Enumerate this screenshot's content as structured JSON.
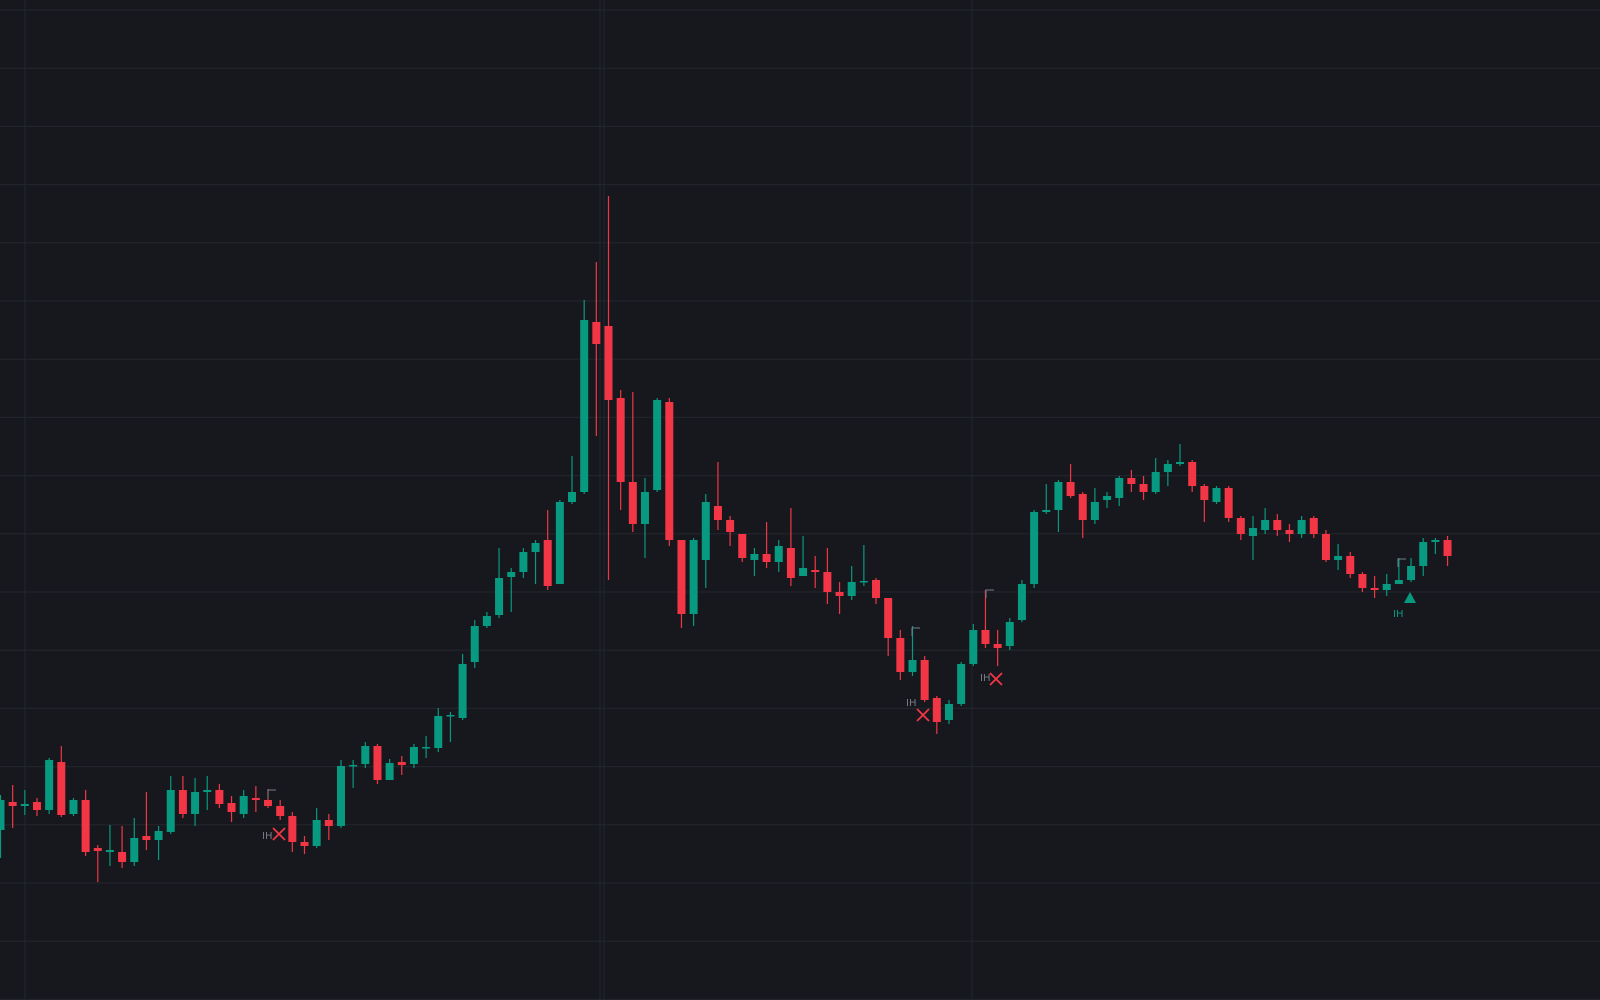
{
  "chart_data": {
    "type": "candlestick",
    "up_color": "#089981",
    "down_color": "#f23645",
    "ylim": [
      0,
      980
    ],
    "grid": true,
    "open": [
      150,
      178,
      174,
      178,
      170,
      218,
      166,
      180,
      132,
      128,
      128,
      118,
      144,
      140,
      148,
      190,
      166,
      188,
      190,
      177,
      166,
      182,
      180,
      174,
      164,
      138,
      134,
      160,
      154,
      214,
      216,
      234,
      200,
      218,
      216,
      232,
      232,
      264,
      262,
      318,
      354,
      365,
      403,
      408,
      428,
      440,
      396,
      478,
      488,
      658,
      654,
      582,
      498,
      456,
      490,
      578,
      440,
      366,
      420,
      474,
      460,
      446,
      420,
      426,
      418,
      432,
      404,
      410,
      408,
      388,
      384,
      398,
      400,
      382,
      342,
      308,
      320,
      282,
      260,
      276,
      316,
      350,
      336,
      334,
      360,
      396,
      468,
      470,
      498,
      486,
      460,
      480,
      482,
      502,
      496,
      488,
      508,
      516,
      518,
      494,
      478,
      492,
      462,
      444,
      450,
      460,
      450,
      446,
      462,
      446,
      420,
      424,
      406,
      392,
      390,
      396,
      400,
      414,
      438,
      440
    ],
    "high": [
      185,
      195,
      190,
      182,
      222,
      234,
      182,
      190,
      135,
      155,
      154,
      162,
      188,
      154,
      204,
      204,
      202,
      204,
      196,
      184,
      190,
      194,
      191,
      180,
      168,
      144,
      172,
      166,
      220,
      220,
      238,
      236,
      221,
      224,
      236,
      244,
      272,
      268,
      326,
      360,
      368,
      432,
      412,
      432,
      440,
      470,
      480,
      524,
      680,
      718,
      784,
      590,
      588,
      502,
      582,
      582,
      440,
      442,
      486,
      518,
      464,
      446,
      432,
      458,
      440,
      472,
      444,
      424,
      432,
      398,
      414,
      435,
      402,
      382,
      350,
      354,
      324,
      284,
      280,
      318,
      356,
      390,
      350,
      362,
      400,
      470,
      496,
      500,
      516,
      488,
      492,
      488,
      504,
      510,
      504,
      522,
      520,
      536,
      520,
      496,
      494,
      494,
      464,
      464,
      472,
      466,
      456,
      464,
      464,
      450,
      436,
      428,
      408,
      404,
      406,
      422,
      422,
      442,
      442,
      444
    ],
    "low": [
      122,
      152,
      165,
      164,
      166,
      163,
      164,
      124,
      98,
      114,
      112,
      114,
      130,
      120,
      146,
      162,
      154,
      170,
      172,
      158,
      162,
      168,
      172,
      160,
      128,
      126,
      132,
      140,
      152,
      192,
      212,
      196,
      200,
      205,
      212,
      222,
      228,
      238,
      260,
      312,
      352,
      362,
      368,
      402,
      396,
      390,
      396,
      476,
      486,
      544,
      400,
      470,
      448,
      422,
      488,
      434,
      352,
      354,
      392,
      450,
      434,
      418,
      404,
      412,
      408,
      394,
      404,
      392,
      376,
      366,
      380,
      394,
      376,
      324,
      300,
      304,
      278,
      246,
      256,
      274,
      314,
      332,
      314,
      330,
      358,
      392,
      466,
      448,
      482,
      442,
      456,
      472,
      474,
      488,
      480,
      486,
      494,
      514,
      488,
      458,
      476,
      458,
      440,
      420,
      446,
      444,
      438,
      442,
      442,
      418,
      410,
      402,
      388,
      382,
      384,
      396,
      398,
      404,
      426,
      414
    ],
    "close": [
      180,
      174,
      176,
      170,
      220,
      165,
      180,
      128,
      129,
      130,
      118,
      142,
      140,
      149,
      190,
      166,
      188,
      190,
      176,
      168,
      184,
      180,
      174,
      164,
      138,
      134,
      160,
      154,
      214,
      215,
      234,
      200,
      217,
      215,
      233,
      233,
      264,
      265,
      316,
      354,
      364,
      402,
      408,
      428,
      437,
      394,
      478,
      488,
      660,
      636,
      580,
      498,
      456,
      488,
      580,
      440,
      366,
      440,
      478,
      460,
      448,
      422,
      426,
      418,
      434,
      402,
      412,
      408,
      388,
      384,
      398,
      399,
      382,
      342,
      308,
      320,
      280,
      258,
      276,
      316,
      350,
      336,
      332,
      358,
      396,
      468,
      470,
      498,
      484,
      460,
      478,
      484,
      502,
      496,
      488,
      508,
      516,
      518,
      494,
      480,
      492,
      462,
      446,
      452,
      460,
      450,
      446,
      460,
      446,
      420,
      424,
      406,
      392,
      390,
      396,
      400,
      414,
      438,
      440,
      424
    ],
    "annotations": [
      {
        "text": "IH",
        "marker": "cross"
      },
      {
        "text": "IH",
        "marker": "cross"
      },
      {
        "text": "IH",
        "marker": "cross"
      },
      {
        "text": "IH",
        "marker": "triangle"
      }
    ]
  }
}
